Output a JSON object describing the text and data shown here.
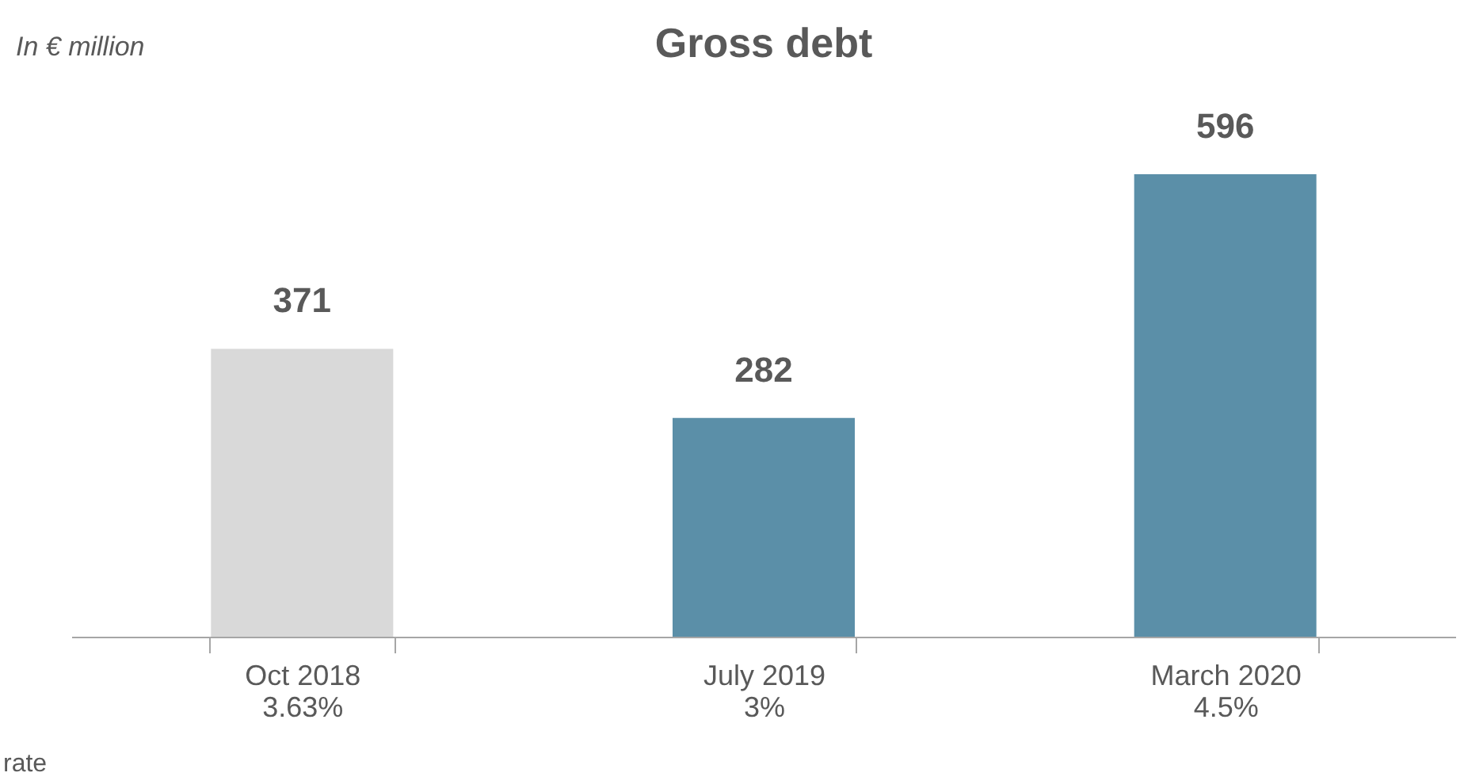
{
  "chart_data": {
    "type": "bar",
    "title": "Gross debt",
    "subtitle": "In € million",
    "categories": [
      "Oct 2018\n3.63%",
      "July 2019\n3%",
      "March 2020\n4.5%"
    ],
    "values": [
      371,
      282,
      596
    ],
    "colors": [
      "#d9d9d9",
      "#5b8fa8",
      "#5b8fa8"
    ],
    "data_labels": true,
    "legend": false,
    "annotations": [
      "rate"
    ]
  }
}
